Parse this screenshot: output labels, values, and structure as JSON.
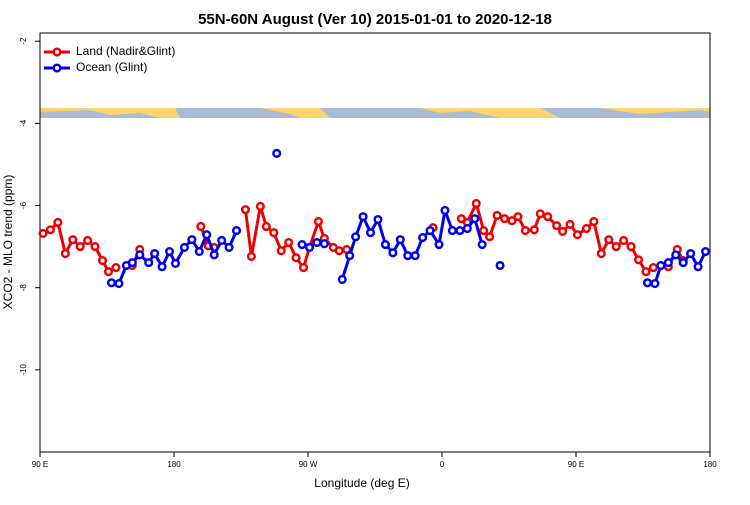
{
  "chart_data": {
    "type": "line",
    "title": "55N-60N August (Ver 10)   2015-01-01 to 2020-12-18",
    "xlabel": "Longitude (deg E)",
    "ylabel": "XCO2 - MLO trend (ppm)",
    "xlim": [
      90,
      540
    ],
    "ylim": [
      -12,
      -1.8
    ],
    "xticks": [
      {
        "value": 90,
        "label": "90 E"
      },
      180,
      {
        "value": 270,
        "label": "90 W"
      },
      {
        "value": 360,
        "label": "0"
      },
      {
        "value": 450,
        "label": "90 E"
      },
      {
        "value": 540,
        "label": "180"
      }
    ],
    "yticks": [
      -2,
      -4,
      -6,
      -8,
      -10
    ],
    "legend": "top-left",
    "series": [
      {
        "name": "Land (Nadir&Glint)",
        "color": "#ee0000",
        "x": [
          92,
          97,
          102,
          107,
          112,
          117,
          122,
          127,
          132,
          136,
          141,
          null,
          152,
          157,
          null,
          198,
          203,
          207,
          null,
          228,
          232,
          238,
          242,
          247,
          252,
          257,
          262,
          267,
          271,
          277,
          281,
          287,
          291,
          296,
          null,
          354,
          null,
          373,
          377,
          383,
          388,
          392,
          397,
          402,
          407,
          411,
          416,
          422,
          426,
          431,
          437,
          441,
          446,
          451,
          457,
          462,
          467,
          472,
          477,
          482,
          487,
          492,
          497,
          502,
          507,
          512,
          518,
          522
        ],
        "values": [
          -6.68,
          -6.59,
          -6.41,
          -7.17,
          -6.83,
          -7.0,
          -6.85,
          -7.0,
          -7.34,
          -7.61,
          -7.51,
          null,
          -7.46,
          -7.07,
          null,
          -6.51,
          -6.98,
          -7.02,
          null,
          -6.1,
          -7.24,
          -6.02,
          -6.51,
          -6.66,
          -7.1,
          -6.9,
          -7.27,
          -7.51,
          -7.02,
          -6.39,
          -6.8,
          -7.02,
          -7.1,
          -7.07,
          null,
          -6.54,
          null,
          -6.32,
          -6.41,
          -5.95,
          -6.61,
          -6.76,
          -6.24,
          -6.32,
          -6.37,
          -6.27,
          -6.61,
          -6.59,
          -6.2,
          -6.27,
          -6.49,
          -6.63,
          -6.46,
          -6.71,
          -6.56,
          -6.39,
          -7.17,
          -6.83,
          -7.0,
          -6.85,
          -7.0,
          -7.32,
          -7.61,
          -7.51,
          -7.46,
          -7.49,
          -7.07,
          -7.34
        ]
      },
      {
        "name": "Ocean (Glint)",
        "color": "#0000ee",
        "x": [
          138,
          143,
          148,
          152,
          157,
          163,
          167,
          172,
          177,
          181,
          187,
          192,
          197,
          202,
          207,
          212,
          217,
          222,
          null,
          249,
          null,
          266,
          271,
          276,
          281,
          null,
          293,
          298,
          302,
          307,
          312,
          317,
          322,
          327,
          332,
          337,
          342,
          347,
          352,
          358,
          362,
          367,
          372,
          377,
          382,
          387,
          null,
          399,
          null,
          498,
          503,
          507,
          512,
          517,
          522,
          527,
          532,
          537
        ],
        "values": [
          -7.88,
          -7.9,
          -7.46,
          -7.39,
          -7.2,
          -7.39,
          -7.17,
          -7.49,
          -7.12,
          -7.41,
          -7.02,
          -6.83,
          -7.12,
          -6.71,
          -7.2,
          -6.85,
          -7.02,
          -6.61,
          null,
          -4.73,
          null,
          -6.95,
          -7.02,
          -6.9,
          -6.93,
          null,
          -7.8,
          -7.22,
          -6.76,
          -6.27,
          -6.66,
          -6.34,
          -6.95,
          -7.15,
          -6.83,
          -7.22,
          -7.22,
          -6.78,
          -6.61,
          -6.95,
          -6.12,
          -6.61,
          -6.61,
          -6.56,
          -6.32,
          -6.95,
          null,
          -7.46,
          null,
          -7.88,
          -7.9,
          -7.46,
          -7.39,
          -7.2,
          -7.39,
          -7.17,
          -7.49,
          -7.12
        ]
      }
    ]
  }
}
